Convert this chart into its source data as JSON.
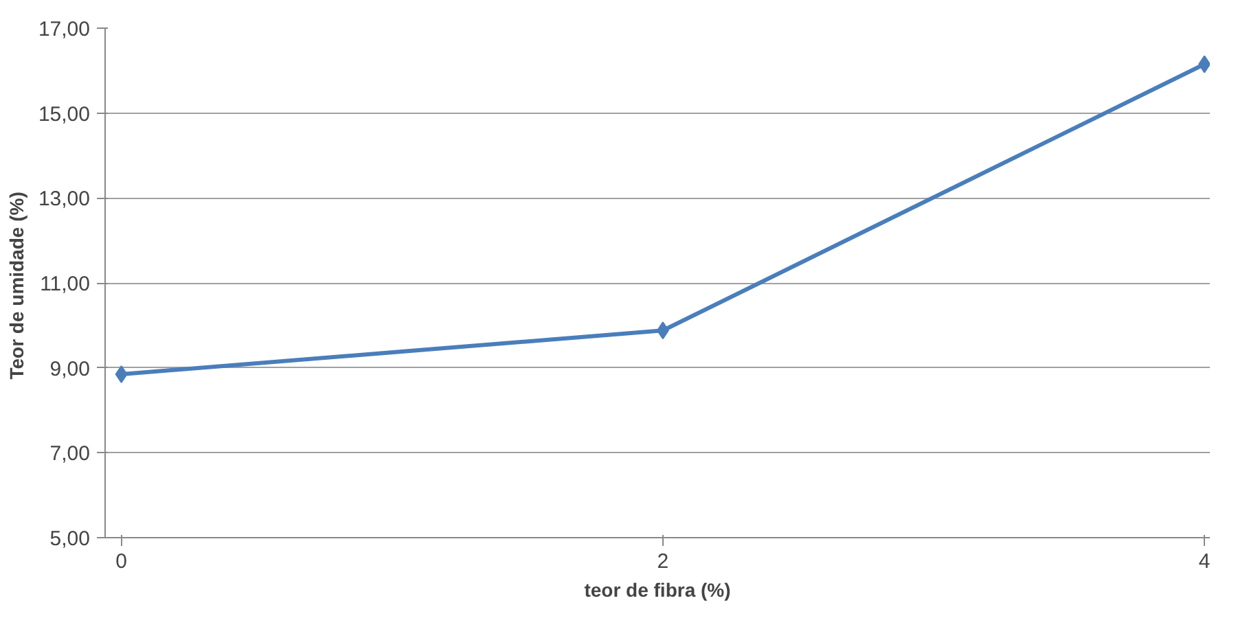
{
  "chart_data": {
    "type": "line",
    "xlabel": "teor de fibra (%)",
    "ylabel": "Teor de umidade  (%)",
    "categories": [
      "0",
      "2",
      "4"
    ],
    "series": [
      {
        "color": "#4a7ebb",
        "values": [
          8.85,
          9.88,
          16.15
        ]
      }
    ],
    "ylim": [
      5,
      17
    ],
    "yticks": [
      {
        "value": 5,
        "label": "5,00"
      },
      {
        "value": 7,
        "label": "7,00"
      },
      {
        "value": 9,
        "label": "9,00"
      },
      {
        "value": 11,
        "label": "11,00"
      },
      {
        "value": 13,
        "label": "13,00"
      },
      {
        "value": 15,
        "label": "15,00"
      },
      {
        "value": 17,
        "label": "17,00"
      }
    ],
    "grid": "y",
    "marker": "diamond",
    "line_style": "solid"
  }
}
